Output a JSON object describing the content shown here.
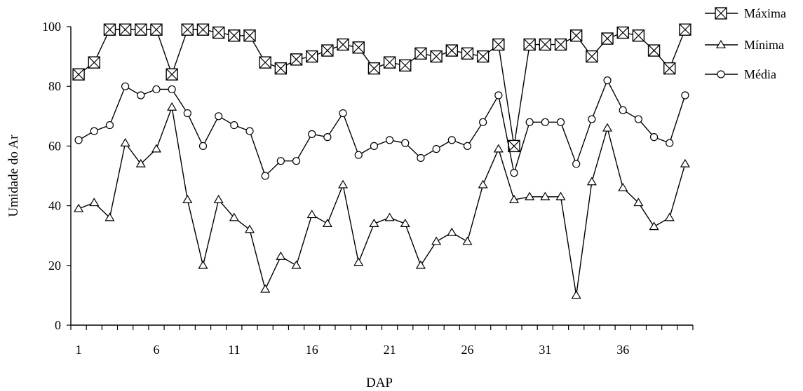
{
  "chart_data": {
    "type": "line",
    "title": "",
    "xlabel": "DAP",
    "ylabel": "Umidade do Ar",
    "ylim": [
      0,
      100
    ],
    "yticks": [
      0,
      20,
      40,
      60,
      80,
      100
    ],
    "xticks": [
      1,
      6,
      11,
      16,
      21,
      26,
      31,
      36
    ],
    "legend": "right",
    "grid": false,
    "x": [
      1,
      2,
      3,
      4,
      5,
      6,
      7,
      8,
      9,
      10,
      11,
      12,
      13,
      14,
      15,
      16,
      17,
      18,
      19,
      20,
      21,
      22,
      23,
      24,
      25,
      26,
      27,
      28,
      29,
      30,
      31,
      32,
      33,
      34,
      35,
      36,
      37,
      38,
      39,
      40
    ],
    "series": [
      {
        "name": "Máxima",
        "marker": "boxed-x",
        "values": [
          84,
          88,
          99,
          99,
          99,
          99,
          84,
          99,
          99,
          98,
          97,
          97,
          88,
          86,
          89,
          90,
          92,
          94,
          93,
          86,
          88,
          87,
          91,
          90,
          92,
          91,
          90,
          94,
          60,
          94,
          94,
          94,
          97,
          90,
          96,
          98,
          97,
          92,
          86,
          99
        ]
      },
      {
        "name": "Mínima",
        "marker": "triangle",
        "values": [
          39,
          41,
          36,
          61,
          54,
          59,
          73,
          42,
          20,
          42,
          36,
          32,
          12,
          23,
          20,
          37,
          34,
          47,
          21,
          34,
          36,
          34,
          20,
          28,
          31,
          28,
          47,
          59,
          42,
          43,
          43,
          43,
          10,
          48,
          66,
          46,
          41,
          33,
          36,
          54
        ]
      },
      {
        "name": "Média",
        "marker": "circle",
        "values": [
          62,
          65,
          67,
          80,
          77,
          79,
          79,
          71,
          60,
          70,
          67,
          65,
          50,
          55,
          55,
          64,
          63,
          71,
          57,
          60,
          62,
          61,
          56,
          59,
          62,
          60,
          68,
          77,
          51,
          68,
          68,
          68,
          54,
          69,
          82,
          72,
          69,
          63,
          61,
          77
        ]
      }
    ]
  }
}
